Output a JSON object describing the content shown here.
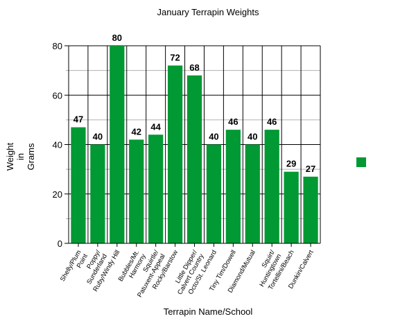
{
  "chart": {
    "title": "January Terrapin Weights",
    "ylabel": "Weight in Grams",
    "ylabel_lines": [
      "Weight",
      "in",
      "Grams"
    ],
    "xlabel": "Terrapin Name/School",
    "bar_color": "#009933"
  },
  "chart_data": {
    "type": "bar",
    "title": "January Terrapin Weights",
    "xlabel": "Terrapin Name/School",
    "ylabel": "Weight in Grams",
    "ylim": [
      0,
      80
    ],
    "yticks": [
      0,
      20,
      40,
      60,
      80
    ],
    "grid": true,
    "legend_position": "right",
    "legend_entries": [
      ""
    ],
    "categories": [
      "Shelly/Plum Point",
      "Poppy/ Sunderland",
      "Ruby/Windy Hill",
      "Bubbles/Mt. Harmony",
      "Squirtle/ Patuxent-Appeal",
      "Rocky/Barstow",
      "Little Dipper/ Calvert Country",
      "Octo/St. Leonard",
      "Tiny Tim/Dowell",
      "Diamond/Mutual",
      "Squirt/ Huntingtown",
      "Tortellini/Beach",
      "Dunkin/Calvert"
    ],
    "values": [
      47,
      40,
      80,
      42,
      44,
      72,
      68,
      40,
      46,
      40,
      46,
      29,
      27
    ],
    "data_labels": [
      "47",
      "40",
      "80",
      "42",
      "44",
      "72",
      "68",
      "40",
      "46",
      "40",
      "46",
      "29",
      "27"
    ]
  }
}
